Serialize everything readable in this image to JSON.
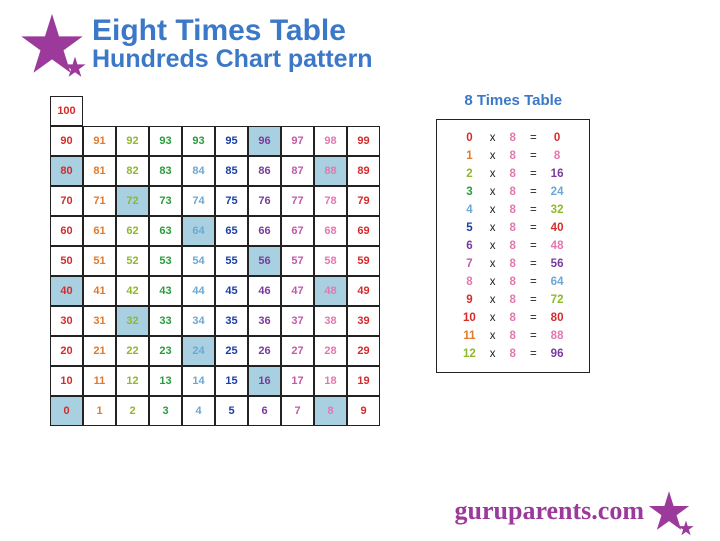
{
  "title": {
    "line1": "Eight Times Table",
    "line2": "Hundreds Chart pattern"
  },
  "star_color": "#9b3a9b",
  "colors": {
    "c0": "#d62b2b",
    "c1": "#e07a2c",
    "c2": "#8fb82a",
    "c3": "#2a9b3c",
    "c4": "#6ba8d6",
    "c5": "#1a3fa8",
    "c6": "#7a3a9b",
    "c7": "#c25aa8",
    "c8": "#e676b0",
    "c9": "#d62b2b"
  },
  "highlight": "#a8d0e0",
  "hundreds": {
    "rows": [
      [
        100,
        null,
        null,
        null,
        null,
        null,
        null,
        null,
        null,
        null
      ],
      [
        90,
        91,
        92,
        93,
        93,
        95,
        96,
        97,
        98,
        99
      ],
      [
        80,
        81,
        82,
        83,
        84,
        85,
        86,
        87,
        88,
        89
      ],
      [
        70,
        71,
        72,
        73,
        74,
        75,
        76,
        77,
        78,
        79
      ],
      [
        60,
        61,
        62,
        63,
        64,
        65,
        66,
        67,
        68,
        69
      ],
      [
        50,
        51,
        52,
        53,
        54,
        55,
        56,
        57,
        58,
        59
      ],
      [
        40,
        41,
        42,
        43,
        44,
        45,
        46,
        47,
        48,
        49
      ],
      [
        30,
        31,
        32,
        33,
        34,
        35,
        36,
        37,
        38,
        39
      ],
      [
        20,
        21,
        22,
        23,
        24,
        25,
        26,
        27,
        28,
        29
      ],
      [
        10,
        11,
        12,
        13,
        14,
        15,
        16,
        17,
        18,
        19
      ],
      [
        0,
        1,
        2,
        3,
        4,
        5,
        6,
        7,
        8,
        9
      ]
    ],
    "highlighted": [
      96,
      80,
      88,
      72,
      64,
      56,
      40,
      48,
      32,
      24,
      16,
      0,
      8
    ]
  },
  "times": {
    "title": "8 Times Table",
    "rows": [
      {
        "a": 0,
        "b": 8,
        "r": 0
      },
      {
        "a": 1,
        "b": 8,
        "r": 8
      },
      {
        "a": 2,
        "b": 8,
        "r": 16
      },
      {
        "a": 3,
        "b": 8,
        "r": 24
      },
      {
        "a": 4,
        "b": 8,
        "r": 32
      },
      {
        "a": 5,
        "b": 8,
        "r": 40
      },
      {
        "a": 6,
        "b": 8,
        "r": 48
      },
      {
        "a": 7,
        "b": 8,
        "r": 56
      },
      {
        "a": 8,
        "b": 8,
        "r": 64
      },
      {
        "a": 9,
        "b": 8,
        "r": 72
      },
      {
        "a": 10,
        "b": 8,
        "r": 80
      },
      {
        "a": 11,
        "b": 8,
        "r": 88
      },
      {
        "a": 12,
        "b": 8,
        "r": 96
      }
    ]
  },
  "footer": "guruparents.com"
}
